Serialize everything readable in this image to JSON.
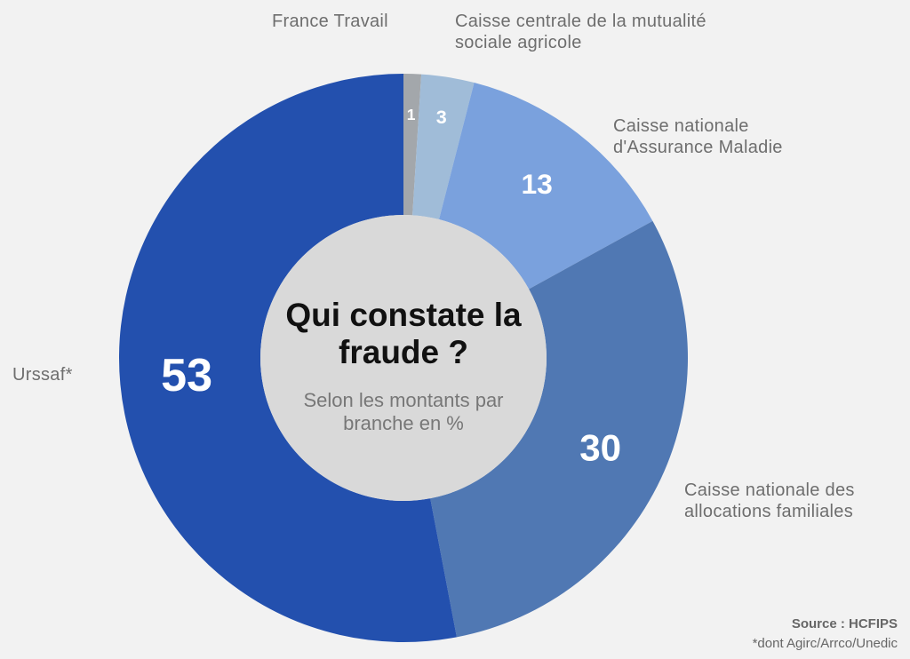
{
  "chart_data": {
    "type": "pie",
    "title": "Qui constate la fraude ?",
    "subtitle": "Selon les montants par branche en %",
    "categories": [
      "France Travail",
      "Caisse centrale de la mutualité sociale agricole",
      "Caisse nationale d'Assurance Maladie",
      "Caisse nationale des allocations familiales",
      "Urssaf*"
    ],
    "values": [
      1,
      3,
      13,
      30,
      53
    ],
    "colors": [
      "#a3a7ab",
      "#a0bcd8",
      "#7aa1dd",
      "#5078b3",
      "#2350ae"
    ],
    "source": "Source : HCFIPS",
    "note": "*dont Agirc/Arrco/Unedic"
  }
}
